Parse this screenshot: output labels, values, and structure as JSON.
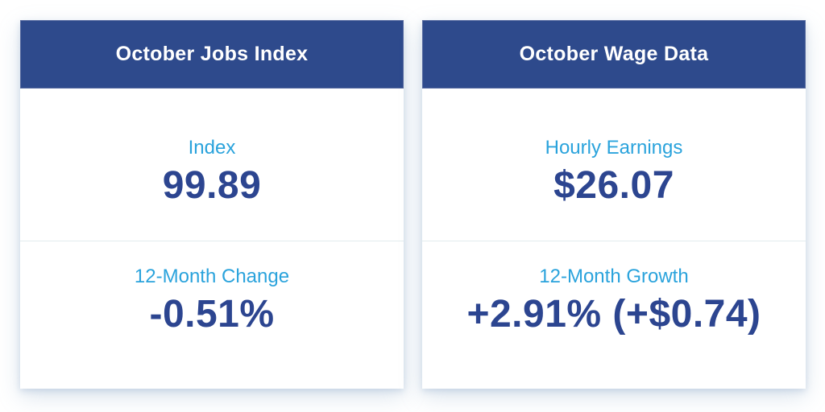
{
  "cards": [
    {
      "title": "October Jobs Index",
      "sections": [
        {
          "label": "Index",
          "value": "99.89"
        },
        {
          "label": "12-Month Change",
          "value": "-0.51%"
        }
      ]
    },
    {
      "title": "October Wage Data",
      "sections": [
        {
          "label": "Hourly Earnings",
          "value": "$26.07"
        },
        {
          "label": "12-Month Growth",
          "value": "+2.91% (+$0.74)"
        }
      ]
    }
  ],
  "chart_data": [
    {
      "type": "table",
      "title": "October Jobs Index",
      "rows": [
        [
          "Index",
          "99.89"
        ],
        [
          "12-Month Change",
          "-0.51%"
        ]
      ],
      "numeric": {
        "index": 99.89,
        "twelve_month_change_pct": -0.51
      }
    },
    {
      "type": "table",
      "title": "October Wage Data",
      "rows": [
        [
          "Hourly Earnings",
          "$26.07"
        ],
        [
          "12-Month Growth",
          "+2.91% (+$0.74)"
        ]
      ],
      "numeric": {
        "hourly_earnings_usd": 26.07,
        "twelve_month_growth_pct": 2.91,
        "twelve_month_growth_usd": 0.74
      }
    }
  ],
  "colors": {
    "header_bg": "#2e4a8c",
    "header_border": "#56699f",
    "header_text": "#ffffff",
    "label_text": "#2aa3dc",
    "value_text": "#2c4590",
    "divider": "#e2ecee",
    "page_bg": "#ffffff"
  }
}
